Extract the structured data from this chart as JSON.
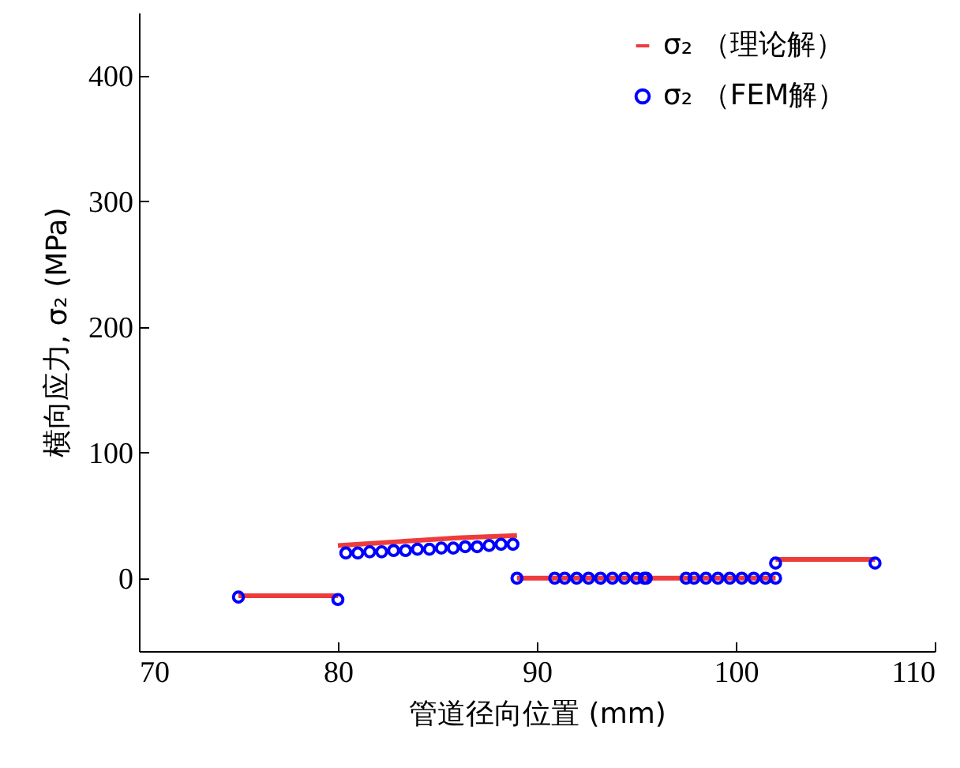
{
  "chart_data": {
    "type": "line",
    "xlabel": "管道径向位置 (mm)",
    "ylabel": "横向应力, σ₂ (MPa)",
    "xlim": [
      70,
      110
    ],
    "xticks": [
      70,
      80,
      90,
      100,
      110
    ],
    "ylim": [
      -58,
      450
    ],
    "yticks": [
      0,
      100,
      200,
      300,
      400
    ],
    "grid": false,
    "legend": "top right",
    "series": [
      {
        "name": "σ₂ （理论解）",
        "color": "#ee3b3b",
        "marker": "none",
        "x": [
          75,
          80
        ],
        "values": [
          -14,
          -14
        ]
      },
      {
        "color": "#ee3b3b",
        "marker": "none",
        "x": [
          80,
          82,
          84,
          86,
          89
        ],
        "values": [
          26,
          28,
          30,
          32,
          34
        ]
      },
      {
        "color": "#ee3b3b",
        "marker": "none",
        "x": [
          89,
          102
        ],
        "values": [
          0,
          0
        ]
      },
      {
        "color": "#ee3b3b",
        "marker": "none",
        "x": [
          102,
          107
        ],
        "values": [
          15,
          15
        ]
      },
      {
        "name": "σ₂ （FEM解）",
        "color": "#0000ff",
        "type": "scatter",
        "marker": "circle",
        "x": [
          75,
          80,
          80.4,
          81.0,
          81.6,
          82.2,
          82.8,
          83.4,
          84.0,
          84.6,
          85.2,
          85.8,
          86.4,
          87.0,
          87.6,
          88.2,
          88.8,
          89.0,
          90.9,
          91.4,
          92.0,
          92.6,
          93.2,
          93.8,
          94.4,
          95.0,
          95.4,
          95.5,
          97.5,
          97.9,
          98.5,
          99.1,
          99.7,
          100.3,
          100.9,
          101.5,
          102.0,
          102.0,
          107.0
        ],
        "values": [
          -15,
          -17,
          20,
          20,
          21,
          21,
          22,
          22,
          23,
          23,
          24,
          24,
          25,
          25,
          26,
          27,
          27,
          0,
          0,
          0,
          0,
          0,
          0,
          0,
          0,
          0,
          0,
          0,
          0,
          0,
          0,
          0,
          0,
          0,
          0,
          0,
          0,
          12,
          12
        ]
      }
    ]
  }
}
